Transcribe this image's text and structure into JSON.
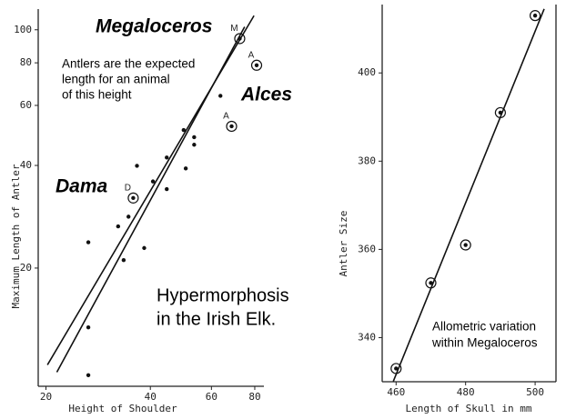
{
  "chart_data": [
    {
      "type": "scatter",
      "title": [
        "Hypermorphosis",
        "in the Irish Elk."
      ],
      "x_label": "Height of Shoulder",
      "y_label": "Maximum Length of Antler",
      "log_x": true,
      "log_y": true,
      "xlim": [
        19,
        85
      ],
      "ylim": [
        9,
        115
      ],
      "xticks": [
        20,
        40,
        60,
        80
      ],
      "yticks": [
        20,
        40,
        60,
        80,
        100
      ],
      "color": "#111111",
      "x": [
        26.5,
        26.5,
        26.5,
        32.3,
        33.5,
        34.6,
        35.7,
        36.6,
        38.4,
        40.7,
        44.6,
        44.6,
        49.9,
        50.6,
        53.5,
        53.5,
        63.7,
        68.6,
        81,
        72.4
      ],
      "y": [
        23.8,
        13.4,
        9.7,
        26.5,
        21.1,
        28.3,
        32.1,
        39.9,
        22.9,
        35.9,
        42.2,
        34.1,
        50.8,
        39.2,
        48.4,
        46.0,
        64.0,
        52.1,
        78.7,
        94.2
      ],
      "point_labels": [
        null,
        null,
        null,
        null,
        null,
        null,
        "D",
        null,
        null,
        null,
        null,
        null,
        null,
        null,
        null,
        null,
        null,
        "A",
        "A",
        "M"
      ],
      "fit_lines": [
        {
          "x": [
            20.2,
            79.6
          ],
          "y": [
            10.4,
            110
          ]
        },
        {
          "x": [
            21.5,
            74.8
          ],
          "y": [
            9.9,
            102
          ]
        }
      ],
      "annotations": [
        "Megaloceros",
        "Alces",
        "Dama",
        [
          "Antlers are the expected",
          "length for an animal",
          "of this height"
        ]
      ]
    },
    {
      "type": "scatter",
      "x_label": "Length of Skull in mm",
      "y_label": "Antler Size",
      "log_x": false,
      "log_y": false,
      "xlim": [
        456,
        506
      ],
      "ylim": [
        330,
        415.5
      ],
      "xticks": [
        460,
        480,
        500
      ],
      "yticks": [
        340,
        360,
        380,
        400
      ],
      "color": "#111111",
      "circled": true,
      "x": [
        460,
        470,
        480,
        490,
        500
      ],
      "y": [
        333,
        352.4,
        361,
        391,
        413
      ],
      "fit_lines": [
        {
          "x": [
            459.2,
            502.6
          ],
          "y": [
            330.1,
            414.5
          ]
        }
      ],
      "annotations": [
        [
          "Allometric variation",
          "within Megaloceros"
        ]
      ]
    }
  ]
}
